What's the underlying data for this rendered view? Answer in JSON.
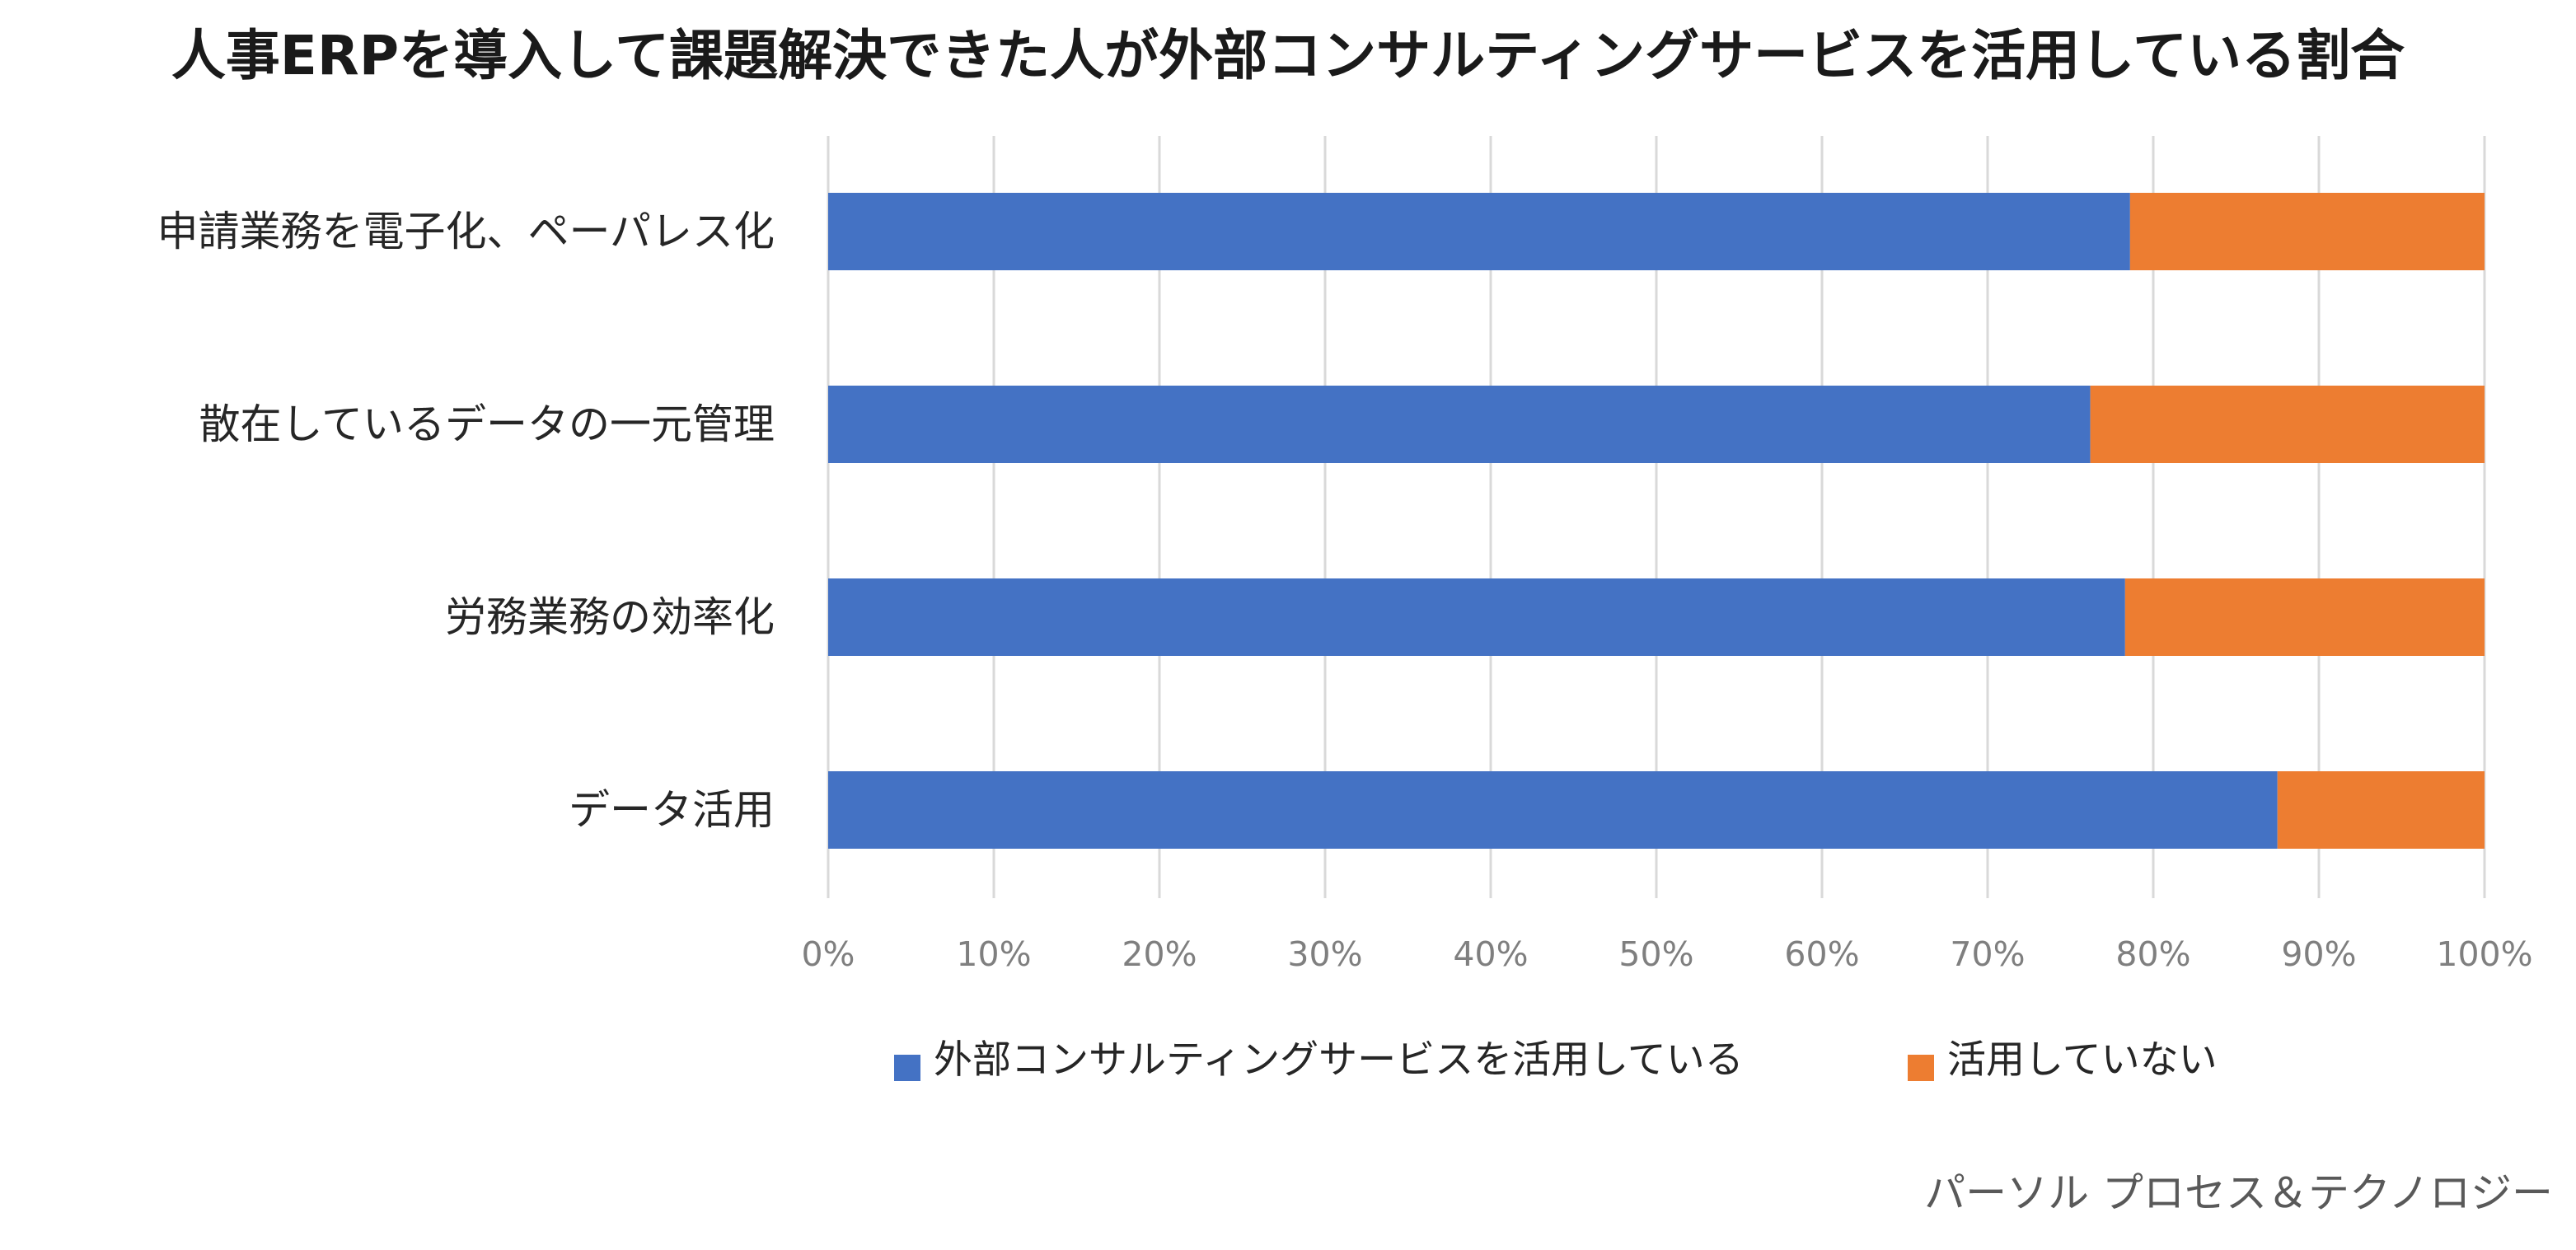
{
  "chart_data": {
    "type": "bar",
    "orientation": "horizontal",
    "stacked": "percent",
    "title": "人事ERPを導入して課題解決できた人が外部コンサルティングサービスを活用している割合",
    "categories": [
      "申請業務を電子化、ペーパレス化",
      "散在しているデータの一元管理",
      "労務業務の効率化",
      "データ活用"
    ],
    "series": [
      {
        "name": "外部コンサルティングサービスを活用している",
        "color": "#4472C4",
        "values": [
          78.6,
          76.2,
          78.3,
          87.5
        ]
      },
      {
        "name": "活用していない",
        "color": "#ED7D31",
        "values": [
          21.4,
          23.8,
          21.7,
          12.5
        ]
      }
    ],
    "x_ticks": [
      "0%",
      "10%",
      "20%",
      "30%",
      "40%",
      "50%",
      "60%",
      "70%",
      "80%",
      "90%",
      "100%"
    ],
    "xlim": [
      0,
      100
    ],
    "grid": true,
    "legend_position": "bottom"
  },
  "source": "パーソル プロセス＆テクノロジー"
}
